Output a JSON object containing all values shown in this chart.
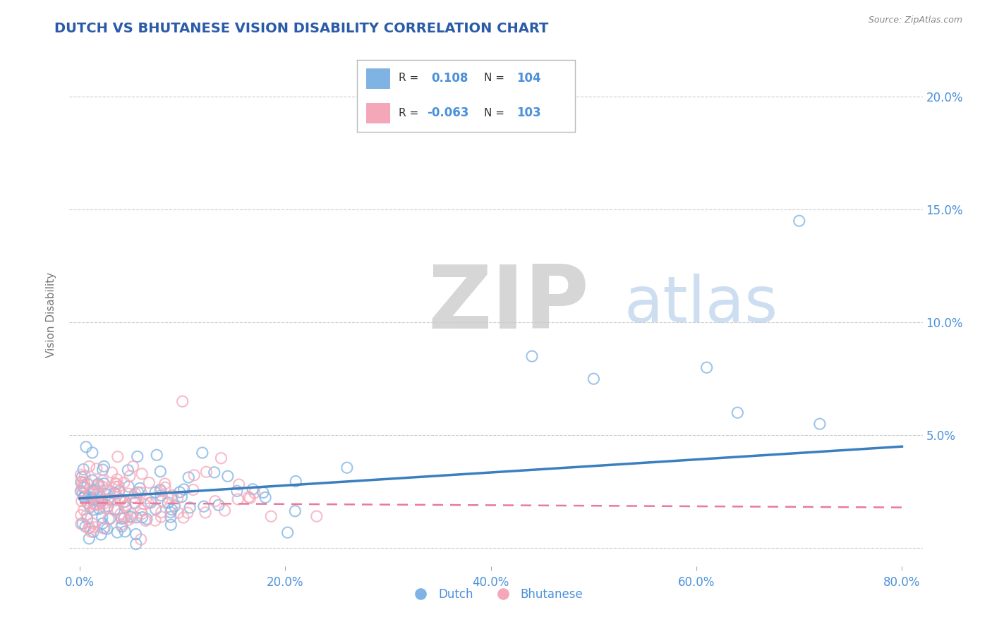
{
  "title": "DUTCH VS BHUTANESE VISION DISABILITY CORRELATION CHART",
  "source": "Source: ZipAtlas.com",
  "ylabel": "Vision Disability",
  "xlim": [
    -0.01,
    0.82
  ],
  "ylim": [
    -0.008,
    0.215
  ],
  "yticks": [
    0.0,
    0.05,
    0.1,
    0.15,
    0.2
  ],
  "ytick_labels": [
    "",
    "5.0%",
    "10.0%",
    "15.0%",
    "20.0%"
  ],
  "xticks": [
    0.0,
    0.2,
    0.4,
    0.6,
    0.8
  ],
  "xtick_labels": [
    "0.0%",
    "20.0%",
    "40.0%",
    "60.0%",
    "80.0%"
  ],
  "dutch_color": "#7EB3E3",
  "bhutanese_color": "#F4A7B9",
  "trend_color_blue": "#3A7FBF",
  "trend_color_pink": "#E87A9A",
  "R_dutch": 0.108,
  "N_dutch": 104,
  "R_bhutanese": -0.063,
  "N_bhutanese": 103,
  "title_color": "#2B5BA8",
  "axis_label_color": "#777777",
  "tick_label_color": "#4A90D9",
  "grid_color": "#CCCCCC",
  "background_color": "#FFFFFF",
  "legend_dutch": "Dutch",
  "legend_bhutanese": "Bhutanese",
  "seed": 42,
  "dutch_outliers_x": [
    0.44,
    0.61,
    0.7,
    0.64,
    0.5,
    0.72
  ],
  "dutch_outliers_y": [
    0.085,
    0.08,
    0.145,
    0.06,
    0.075,
    0.055
  ],
  "bhutanese_outlier_x": [
    0.1
  ],
  "bhutanese_outlier_y": [
    0.065
  ]
}
